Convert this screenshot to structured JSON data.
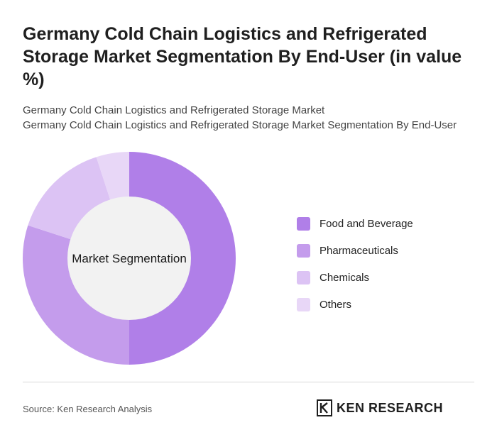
{
  "header": {
    "title": "Germany Cold Chain Logistics and Refrigerated Storage Market Segmentation By End-User (in value %)",
    "subtitle_line1": "Germany Cold Chain Logistics and Refrigerated Storage Market",
    "subtitle_line2": "Germany Cold Chain Logistics and Refrigerated Storage Market Segmentation By End-User"
  },
  "chart_data": {
    "type": "pie",
    "center_label": "Market Segmentation",
    "categories": [
      "Food and Beverage",
      "Pharmaceuticals",
      "Chemicals",
      "Others"
    ],
    "values": [
      50,
      30,
      15,
      5
    ],
    "colors": [
      "#b07fe8",
      "#c49cec",
      "#dcc3f4",
      "#e8d7f7"
    ],
    "legend_position": "right"
  },
  "footer": {
    "source": "Source: Ken Research Analysis",
    "logo_text": "KEN RESEARCH"
  }
}
